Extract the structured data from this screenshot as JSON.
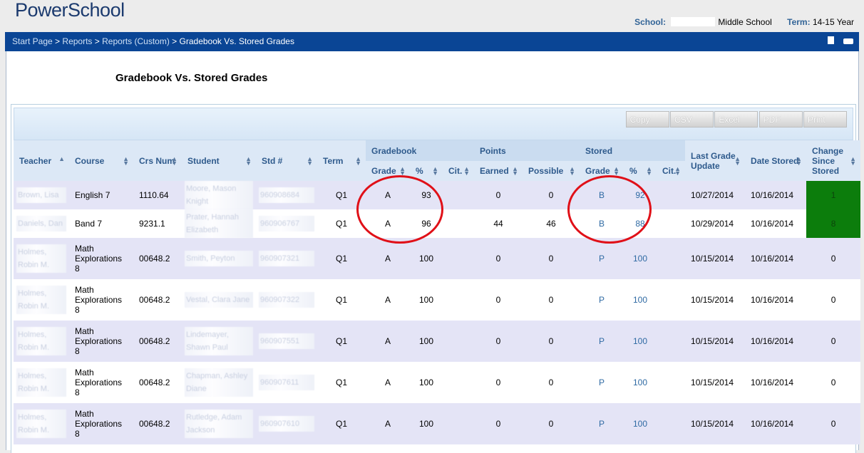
{
  "header": {
    "logo": "PowerSchool",
    "school_label": "School:",
    "school_name": "Middle School",
    "term_label": "Term:",
    "term_value": "14-15 Year"
  },
  "breadcrumb": {
    "items": [
      "Start Page",
      "Reports",
      "Reports (Custom)"
    ],
    "current": "Gradebook Vs. Stored Grades",
    "separator": ">"
  },
  "page_title": "Gradebook Vs. Stored Grades",
  "toolbar": {
    "buttons": [
      "Copy",
      "CSV",
      "Excel",
      "PDF",
      "Print"
    ]
  },
  "table": {
    "headers": {
      "teacher": "Teacher",
      "course": "Course",
      "crs_num": "Crs Num",
      "student": "Student",
      "std_num": "Std #",
      "term": "Term",
      "group_gradebook": "Gradebook",
      "group_points": "Points",
      "group_stored": "Stored",
      "grade": "Grade",
      "pct": "%",
      "cit": "Cit.",
      "earned": "Earned",
      "possible": "Possible",
      "last_update": "Last Grade Update",
      "date_stored": "Date Stored",
      "change": "Change Since Stored"
    },
    "rows": [
      {
        "teacher": "Brown, Lisa",
        "course": "English 7",
        "crs_num": "1110.64",
        "student": "Moore, Mason Knight",
        "std": "960908684",
        "term": "Q1",
        "gb_grade": "A",
        "gb_pct": "93",
        "earned": "0",
        "possible": "0",
        "st_grade": "B",
        "st_pct": "92",
        "last": "10/27/2014",
        "stored": "10/16/2014",
        "change": "1"
      },
      {
        "teacher": "Daniels, Dan",
        "course": "Band 7",
        "crs_num": "9231.1",
        "student": "Prater, Hannah Elizabeth",
        "std": "960906767",
        "term": "Q1",
        "gb_grade": "A",
        "gb_pct": "96",
        "earned": "44",
        "possible": "46",
        "st_grade": "B",
        "st_pct": "88",
        "last": "10/29/2014",
        "stored": "10/16/2014",
        "change": "8"
      },
      {
        "teacher": "Holmes, Robin M.",
        "course": "Math Explorations 8",
        "crs_num": "00648.2",
        "student": "Smith, Peyton",
        "std": "960907321",
        "term": "Q1",
        "gb_grade": "A",
        "gb_pct": "100",
        "earned": "0",
        "possible": "0",
        "st_grade": "P",
        "st_pct": "100",
        "last": "10/15/2014",
        "stored": "10/16/2014",
        "change": "0"
      },
      {
        "teacher": "Holmes, Robin M.",
        "course": "Math Explorations 8",
        "crs_num": "00648.2",
        "student": "Vestal, Clara Jane",
        "std": "960907322",
        "term": "Q1",
        "gb_grade": "A",
        "gb_pct": "100",
        "earned": "0",
        "possible": "0",
        "st_grade": "P",
        "st_pct": "100",
        "last": "10/15/2014",
        "stored": "10/16/2014",
        "change": "0"
      },
      {
        "teacher": "Holmes, Robin M.",
        "course": "Math Explorations 8",
        "crs_num": "00648.2",
        "student": "Lindemayer, Shawn Paul",
        "std": "960907551",
        "term": "Q1",
        "gb_grade": "A",
        "gb_pct": "100",
        "earned": "0",
        "possible": "0",
        "st_grade": "P",
        "st_pct": "100",
        "last": "10/15/2014",
        "stored": "10/16/2014",
        "change": "0"
      },
      {
        "teacher": "Holmes, Robin M.",
        "course": "Math Explorations 8",
        "crs_num": "00648.2",
        "student": "Chapman, Ashley Diane",
        "std": "960907611",
        "term": "Q1",
        "gb_grade": "A",
        "gb_pct": "100",
        "earned": "0",
        "possible": "0",
        "st_grade": "P",
        "st_pct": "100",
        "last": "10/15/2014",
        "stored": "10/16/2014",
        "change": "0"
      },
      {
        "teacher": "Holmes, Robin M.",
        "course": "Math Explorations 8",
        "crs_num": "00648.2",
        "student": "Rutledge, Adam Jackson",
        "std": "960907610",
        "term": "Q1",
        "gb_grade": "A",
        "gb_pct": "100",
        "earned": "0",
        "possible": "0",
        "st_grade": "P",
        "st_pct": "100",
        "last": "10/15/2014",
        "stored": "10/16/2014",
        "change": "0"
      }
    ]
  },
  "colors": {
    "nav_bar": "#0a4595",
    "header_blue": "#2e5a8c",
    "highlight_green": "#0c7d0c",
    "annotation_red": "#e01018"
  }
}
